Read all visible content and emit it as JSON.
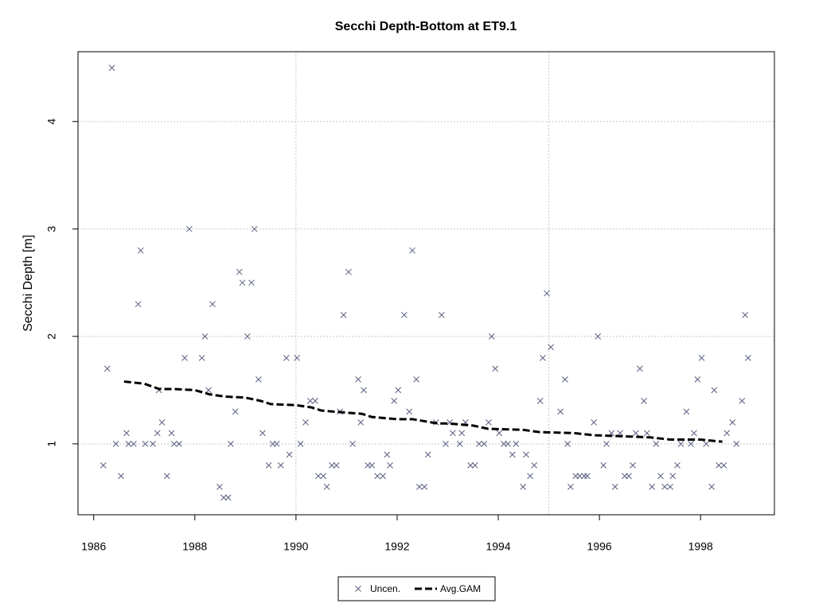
{
  "chart_data": {
    "type": "scatter",
    "title": "Secchi Depth-Bottom at ET9.1",
    "y_label": "Secchi Depth [m]",
    "xlim": [
      1985.69,
      1999.46
    ],
    "ylim": [
      0.34,
      4.65
    ],
    "xticks": [
      1986,
      1988,
      1990,
      1992,
      1994,
      1996,
      1998
    ],
    "yticks": [
      1,
      2,
      3,
      4
    ],
    "grid": true,
    "xgrid": [
      1990,
      1995
    ],
    "legend": "bottom",
    "series": [
      {
        "name": "Uncen.",
        "type": "scatter",
        "color": "#5a6080",
        "x": [
          1986.19,
          1986.27,
          1986.36,
          1986.44,
          1986.54,
          1986.65,
          1986.69,
          1986.79,
          1986.88,
          1986.93,
          1987.02,
          1987.17,
          1987.26,
          1987.29,
          1987.35,
          1987.45,
          1987.54,
          1987.59,
          1987.69,
          1987.8,
          1987.89,
          1988.14,
          1988.2,
          1988.27,
          1988.35,
          1988.49,
          1988.57,
          1988.66,
          1988.71,
          1988.8,
          1988.88,
          1988.94,
          1989.04,
          1989.12,
          1989.18,
          1989.26,
          1989.34,
          1989.46,
          1989.54,
          1989.62,
          1989.7,
          1989.81,
          1989.87,
          1990.02,
          1990.09,
          1990.19,
          1990.28,
          1990.38,
          1990.44,
          1990.54,
          1990.61,
          1990.71,
          1990.8,
          1990.87,
          1990.94,
          1991.04,
          1991.12,
          1991.23,
          1991.28,
          1991.34,
          1991.42,
          1991.5,
          1991.61,
          1991.72,
          1991.8,
          1991.86,
          1991.94,
          1992.02,
          1992.14,
          1992.24,
          1992.3,
          1992.38,
          1992.44,
          1992.54,
          1992.61,
          1992.77,
          1992.88,
          1992.96,
          1993.04,
          1993.1,
          1993.24,
          1993.28,
          1993.35,
          1993.45,
          1993.54,
          1993.62,
          1993.72,
          1993.81,
          1993.87,
          1993.94,
          1994.02,
          1994.11,
          1994.19,
          1994.28,
          1994.35,
          1994.49,
          1994.55,
          1994.63,
          1994.71,
          1994.83,
          1994.88,
          1994.96,
          1995.04,
          1995.23,
          1995.32,
          1995.37,
          1995.43,
          1995.53,
          1995.61,
          1995.7,
          1995.76,
          1995.89,
          1995.97,
          1996.08,
          1996.14,
          1996.24,
          1996.31,
          1996.41,
          1996.5,
          1996.58,
          1996.66,
          1996.72,
          1996.8,
          1996.88,
          1996.94,
          1997.04,
          1997.12,
          1997.21,
          1997.29,
          1997.4,
          1997.45,
          1997.54,
          1997.61,
          1997.72,
          1997.81,
          1997.87,
          1997.94,
          1998.02,
          1998.11,
          1998.22,
          1998.27,
          1998.36,
          1998.46,
          1998.52,
          1998.63,
          1998.71,
          1998.82,
          1998.88,
          1998.94
        ],
        "values": [
          0.8,
          1.7,
          4.5,
          1.0,
          0.7,
          1.1,
          1.0,
          1.0,
          2.3,
          2.8,
          1.0,
          1.0,
          1.1,
          1.5,
          1.2,
          0.7,
          1.1,
          1.0,
          1.0,
          1.8,
          3.0,
          1.8,
          2.0,
          1.5,
          2.3,
          0.6,
          0.5,
          0.5,
          1.0,
          1.3,
          2.6,
          2.5,
          2.0,
          2.5,
          3.0,
          1.6,
          1.1,
          0.8,
          1.0,
          1.0,
          0.8,
          1.8,
          0.9,
          1.8,
          1.0,
          1.2,
          1.4,
          1.4,
          0.7,
          0.7,
          0.6,
          0.8,
          0.8,
          1.3,
          2.2,
          2.6,
          1.0,
          1.6,
          1.2,
          1.5,
          0.8,
          0.8,
          0.7,
          0.7,
          0.9,
          0.8,
          1.4,
          1.5,
          2.2,
          1.3,
          2.8,
          1.6,
          0.6,
          0.6,
          0.9,
          1.2,
          2.2,
          1.0,
          1.2,
          1.1,
          1.0,
          1.1,
          1.2,
          0.8,
          0.8,
          1.0,
          1.0,
          1.2,
          2.0,
          1.7,
          1.1,
          1.0,
          1.0,
          0.9,
          1.0,
          0.6,
          0.9,
          0.7,
          0.8,
          1.4,
          1.8,
          2.4,
          1.9,
          1.3,
          1.6,
          1.0,
          0.6,
          0.7,
          0.7,
          0.7,
          0.7,
          1.2,
          2.0,
          0.8,
          1.0,
          1.1,
          0.6,
          1.1,
          0.7,
          0.7,
          0.8,
          1.1,
          1.7,
          1.4,
          1.1,
          0.6,
          1.0,
          0.7,
          0.6,
          0.6,
          0.7,
          0.8,
          1.0,
          1.3,
          1.0,
          1.1,
          1.6,
          1.8,
          1.0,
          0.6,
          1.5,
          0.8,
          0.8,
          1.1,
          1.2,
          1.0,
          1.4,
          2.2,
          1.8
        ]
      },
      {
        "name": "Avg.GAM",
        "type": "line",
        "color": "#000000",
        "x": [
          1986.6,
          1987.0,
          1987.3,
          1987.6,
          1988.0,
          1988.3,
          1988.6,
          1989.0,
          1989.3,
          1989.5,
          1990.0,
          1990.3,
          1990.5,
          1991.0,
          1991.3,
          1991.5,
          1992.0,
          1992.3,
          1992.8,
          1993.0,
          1993.5,
          1993.8,
          1994.5,
          1994.8,
          1995.5,
          1995.9,
          1996.5,
          1997.0,
          1997.4,
          1997.7,
          1998.0,
          1998.43
        ],
        "values": [
          1.58,
          1.56,
          1.51,
          1.51,
          1.5,
          1.46,
          1.44,
          1.43,
          1.4,
          1.37,
          1.36,
          1.34,
          1.31,
          1.29,
          1.28,
          1.25,
          1.23,
          1.23,
          1.19,
          1.19,
          1.17,
          1.14,
          1.13,
          1.11,
          1.1,
          1.08,
          1.07,
          1.06,
          1.04,
          1.04,
          1.04,
          1.02
        ]
      }
    ]
  }
}
